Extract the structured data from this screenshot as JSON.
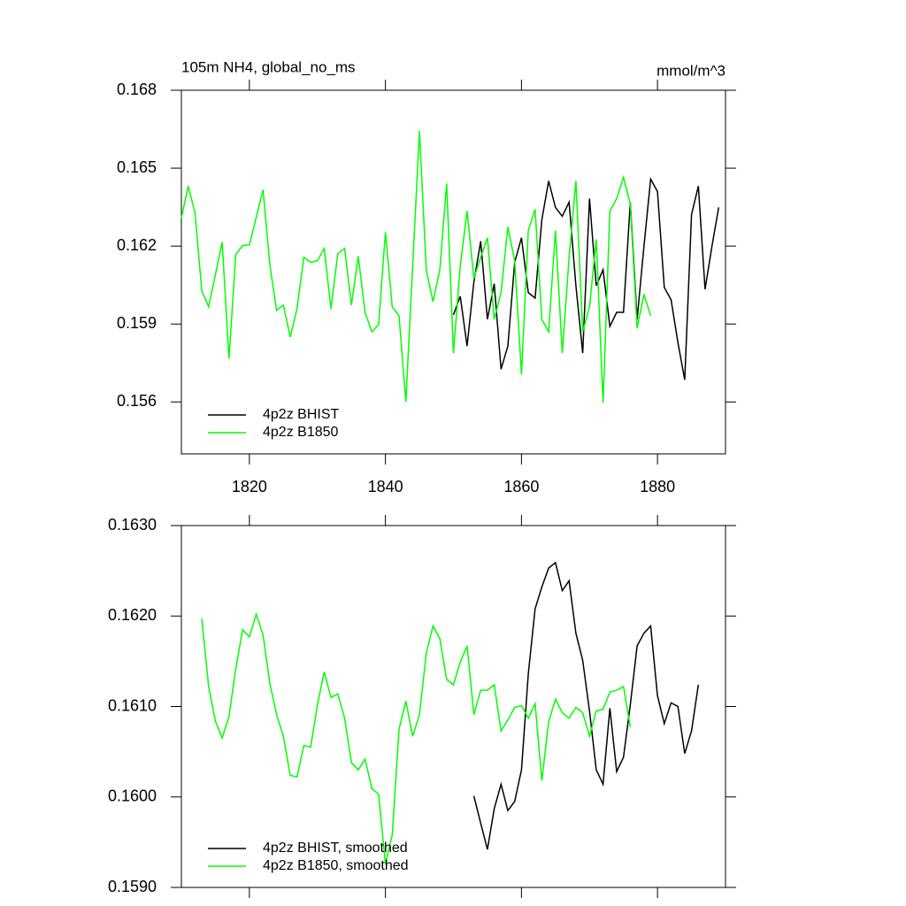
{
  "chart_data": [
    {
      "type": "line",
      "title": "105m NH4, global_no_ms",
      "units": "mmol/m^3",
      "xlim": [
        1810,
        1890
      ],
      "xticks": [
        1820,
        1840,
        1860,
        1880
      ],
      "show_xtick_labels": true,
      "ylim": [
        0.154,
        0.168
      ],
      "yticks": [
        0.156,
        0.159,
        0.162,
        0.165,
        0.168
      ],
      "legend": "lower left",
      "series": [
        {
          "name": "4p2z BHIST",
          "color": "#000000",
          "x": [
            1850,
            1851,
            1852,
            1853,
            1854,
            1855,
            1856,
            1857,
            1858,
            1859,
            1860,
            1861,
            1862,
            1863,
            1864,
            1865,
            1866,
            1867,
            1868,
            1869,
            1870,
            1871,
            1872,
            1873,
            1874,
            1875,
            1876,
            1877,
            1878,
            1879,
            1880,
            1881,
            1882,
            1883,
            1884,
            1885,
            1886,
            1887,
            1888,
            1889
          ],
          "values": [
            0.15935,
            0.16007,
            0.15815,
            0.16062,
            0.16219,
            0.15918,
            0.16055,
            0.15726,
            0.15815,
            0.16137,
            0.16232,
            0.16021,
            0.16,
            0.16301,
            0.16451,
            0.16349,
            0.16315,
            0.16369,
            0.16048,
            0.15788,
            0.16383,
            0.16048,
            0.16109,
            0.15891,
            0.15945,
            0.15945,
            0.16369,
            0.15918,
            0.16198,
            0.16458,
            0.1641,
            0.16041,
            0.15993,
            0.15829,
            0.15685,
            0.16321,
            0.16431,
            0.16034,
            0.16198,
            0.16349
          ]
        },
        {
          "name": "4p2z B1850",
          "color": "#00ff00",
          "x": [
            1810,
            1811,
            1812,
            1813,
            1814,
            1815,
            1816,
            1817,
            1818,
            1819,
            1820,
            1821,
            1822,
            1823,
            1824,
            1825,
            1826,
            1827,
            1828,
            1829,
            1830,
            1831,
            1832,
            1833,
            1834,
            1835,
            1836,
            1837,
            1838,
            1839,
            1840,
            1841,
            1842,
            1843,
            1844,
            1845,
            1846,
            1847,
            1848,
            1849,
            1850,
            1851,
            1852,
            1853,
            1854,
            1855,
            1856,
            1857,
            1858,
            1859,
            1860,
            1861,
            1862,
            1863,
            1864,
            1865,
            1866,
            1867,
            1868,
            1869,
            1870,
            1871,
            1872,
            1873,
            1874,
            1875,
            1876,
            1877,
            1878,
            1879
          ],
          "values": [
            0.16308,
            0.16431,
            0.16328,
            0.16027,
            0.15966,
            0.16089,
            0.16215,
            0.15767,
            0.16168,
            0.16202,
            0.16205,
            0.16311,
            0.16417,
            0.1613,
            0.15952,
            0.15973,
            0.1585,
            0.15959,
            0.16157,
            0.16137,
            0.16144,
            0.16191,
            0.15959,
            0.16171,
            0.16191,
            0.15973,
            0.16161,
            0.15945,
            0.1587,
            0.15897,
            0.16253,
            0.15966,
            0.15932,
            0.156,
            0.16123,
            0.16643,
            0.16109,
            0.15986,
            0.16109,
            0.16441,
            0.15788,
            0.16123,
            0.16335,
            0.16075,
            0.16157,
            0.16232,
            0.15918,
            0.16021,
            0.16274,
            0.16144,
            0.15706,
            0.1626,
            0.16342,
            0.15918,
            0.1587,
            0.1626,
            0.15788,
            0.16157,
            0.16451,
            0.1587,
            0.15966,
            0.16226,
            0.15597,
            0.16335,
            0.16383,
            0.16465,
            0.16362,
            0.15884,
            0.16014,
            0.15932
          ]
        }
      ]
    },
    {
      "type": "line",
      "xlim": [
        1810,
        1890
      ],
      "xticks": [
        1820,
        1840,
        1860,
        1880
      ],
      "show_xtick_labels": false,
      "ylim": [
        0.159,
        0.163
      ],
      "yticks": [
        {
          "value": 0.159,
          "label": "0.1590"
        },
        {
          "value": 0.16,
          "label": "0.1600"
        },
        {
          "value": 0.161,
          "label": "0.1610"
        },
        {
          "value": 0.162,
          "label": "0.1620"
        },
        {
          "value": 0.163,
          "label": "0.1630"
        }
      ],
      "legend": "lower left",
      "series": [
        {
          "name": "4p2z BHIST, smoothed",
          "color": "#000000",
          "x": [
            1853,
            1854,
            1855,
            1856,
            1857,
            1858,
            1859,
            1860,
            1861,
            1862,
            1863,
            1864,
            1865,
            1866,
            1867,
            1868,
            1869,
            1870,
            1871,
            1872,
            1873,
            1874,
            1875,
            1876,
            1877,
            1878,
            1879,
            1880,
            1881,
            1882,
            1883,
            1884,
            1885,
            1886
          ],
          "values": [
            0.16001,
            0.15971,
            0.15942,
            0.15987,
            0.16014,
            0.15985,
            0.15995,
            0.1603,
            0.16136,
            0.16208,
            0.16232,
            0.16253,
            0.16259,
            0.16228,
            0.16239,
            0.16181,
            0.16151,
            0.16095,
            0.1603,
            0.16014,
            0.16098,
            0.16028,
            0.16044,
            0.16102,
            0.16167,
            0.16181,
            0.16189,
            0.16112,
            0.16081,
            0.16104,
            0.161,
            0.16048,
            0.16073,
            0.16124
          ]
        },
        {
          "name": "4p2z B1850, smoothed",
          "color": "#00ff00",
          "x": [
            1813,
            1814,
            1815,
            1816,
            1817,
            1818,
            1819,
            1820,
            1821,
            1822,
            1823,
            1824,
            1825,
            1826,
            1827,
            1828,
            1829,
            1830,
            1831,
            1832,
            1833,
            1834,
            1835,
            1836,
            1837,
            1838,
            1839,
            1840,
            1841,
            1842,
            1843,
            1844,
            1845,
            1846,
            1847,
            1848,
            1849,
            1850,
            1851,
            1852,
            1853,
            1854,
            1855,
            1856,
            1857,
            1858,
            1859,
            1860,
            1861,
            1862,
            1863,
            1864,
            1865,
            1866,
            1867,
            1868,
            1869,
            1870,
            1871,
            1872,
            1873,
            1874,
            1875,
            1876
          ],
          "values": [
            0.16197,
            0.16122,
            0.16084,
            0.16065,
            0.16089,
            0.16142,
            0.16185,
            0.16177,
            0.16202,
            0.16179,
            0.16126,
            0.16091,
            0.16067,
            0.16024,
            0.16022,
            0.16057,
            0.16055,
            0.16102,
            0.16138,
            0.1611,
            0.16114,
            0.16087,
            0.16038,
            0.1603,
            0.16042,
            0.16009,
            0.16003,
            0.15926,
            0.15958,
            0.16075,
            0.16106,
            0.16067,
            0.16091,
            0.16159,
            0.16189,
            0.16175,
            0.1613,
            0.16124,
            0.16149,
            0.16167,
            0.16091,
            0.16118,
            0.16118,
            0.16124,
            0.16073,
            0.16085,
            0.16099,
            0.16101,
            0.16087,
            0.16103,
            0.16018,
            0.16083,
            0.16108,
            0.16093,
            0.16087,
            0.16099,
            0.16093,
            0.16067,
            0.16095,
            0.16097,
            0.16116,
            0.16118,
            0.16122,
            0.16077
          ]
        }
      ]
    }
  ]
}
